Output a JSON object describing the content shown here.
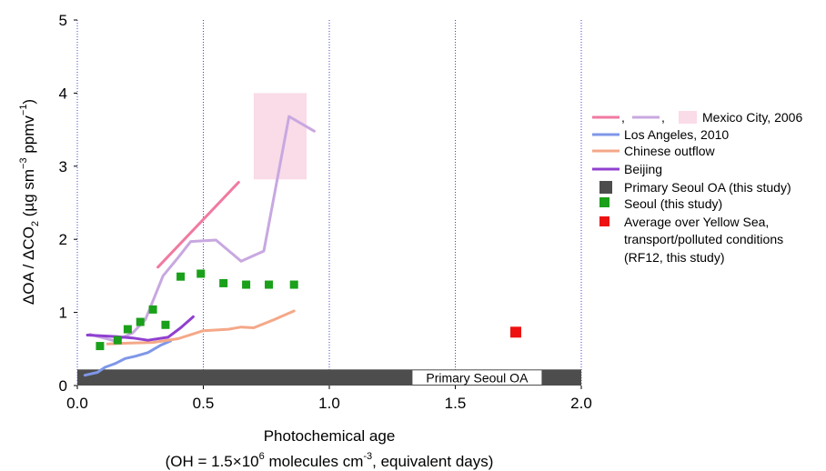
{
  "chart_data": {
    "type": "line",
    "xlim": [
      0,
      2.0
    ],
    "ylim": [
      0,
      5
    ],
    "x_ticks": [
      "0.0",
      "0.5",
      "1.0",
      "1.5",
      "2.0"
    ],
    "y_ticks": [
      "0",
      "1",
      "2",
      "3",
      "4",
      "5"
    ],
    "xlabel": "Photochemical age",
    "xlabel2_pre": "(OH = 1.5×10",
    "xlabel2_sup": "6",
    "xlabel2_mid": " molecules cm",
    "xlabel2_sup2": "-3",
    "xlabel2_post": ", equivalent days)",
    "ylabel_a": "ΔOA / ΔCO",
    "ylabel_sub": "2",
    "ylabel_b": " (µg sm",
    "ylabel_sup1": "−3",
    "ylabel_c": " ppmv",
    "ylabel_sup2": "−1",
    "ylabel_d": ")",
    "vertical_gridlines": [
      0.5,
      1.0,
      1.5,
      2.0
    ],
    "grid_color": "#4040d0",
    "band": {
      "label": "Primary Seoul OA",
      "y_range": [
        0,
        0.22
      ],
      "color": "#4d4d4d"
    },
    "mexico_box": {
      "x_range": [
        0.7,
        0.91
      ],
      "y_range": [
        2.82,
        4.0
      ],
      "color": "#fadbe8"
    },
    "series": [
      {
        "name": "Mexico City, 2006",
        "color": "#f07aa0",
        "points": [
          [
            0.32,
            1.62
          ],
          [
            0.64,
            2.78
          ]
        ]
      },
      {
        "color": "#c8a8e0",
        "points": [
          [
            0.05,
            0.7
          ],
          [
            0.15,
            0.61
          ],
          [
            0.22,
            0.72
          ],
          [
            0.27,
            0.9
          ],
          [
            0.34,
            1.5
          ],
          [
            0.4,
            1.75
          ],
          [
            0.45,
            1.97
          ],
          [
            0.55,
            1.99
          ],
          [
            0.65,
            1.7
          ],
          [
            0.74,
            1.84
          ],
          [
            0.84,
            3.68
          ],
          [
            0.94,
            3.48
          ]
        ]
      },
      {
        "name": "Los Angeles, 2010",
        "color": "#7f97e8",
        "points": [
          [
            0.03,
            0.14
          ],
          [
            0.08,
            0.18
          ],
          [
            0.11,
            0.25
          ],
          [
            0.15,
            0.3
          ],
          [
            0.19,
            0.37
          ],
          [
            0.23,
            0.4
          ],
          [
            0.28,
            0.45
          ],
          [
            0.33,
            0.55
          ],
          [
            0.37,
            0.61
          ]
        ]
      },
      {
        "name": "Chinese  outflow",
        "color": "#f4a888",
        "points": [
          [
            0.12,
            0.57
          ],
          [
            0.2,
            0.58
          ],
          [
            0.3,
            0.59
          ],
          [
            0.4,
            0.64
          ],
          [
            0.5,
            0.75
          ],
          [
            0.6,
            0.77
          ],
          [
            0.65,
            0.8
          ],
          [
            0.7,
            0.79
          ],
          [
            0.78,
            0.9
          ],
          [
            0.86,
            1.02
          ]
        ]
      },
      {
        "name": "Beijing",
        "color": "#9040d0",
        "points": [
          [
            0.04,
            0.69
          ],
          [
            0.15,
            0.67
          ],
          [
            0.22,
            0.65
          ],
          [
            0.28,
            0.62
          ],
          [
            0.36,
            0.66
          ],
          [
            0.41,
            0.79
          ],
          [
            0.46,
            0.94
          ]
        ]
      }
    ],
    "scatter": [
      {
        "name": "Seoul  (this study)",
        "color": "#1aa01a",
        "points": [
          [
            0.09,
            0.54
          ],
          [
            0.16,
            0.62
          ],
          [
            0.2,
            0.77
          ],
          [
            0.25,
            0.87
          ],
          [
            0.3,
            1.04
          ],
          [
            0.35,
            0.83
          ],
          [
            0.41,
            1.49
          ],
          [
            0.49,
            1.53
          ],
          [
            0.58,
            1.4
          ],
          [
            0.67,
            1.38
          ],
          [
            0.76,
            1.38
          ],
          [
            0.86,
            1.38
          ]
        ]
      },
      {
        "name": "Average over Yellow Sea, transport/polluted conditions (RF12, this study)",
        "color": "#ee1111",
        "points": [
          [
            1.74,
            0.73
          ]
        ]
      }
    ],
    "legend": {
      "placement": "right",
      "row1_sep1": ",",
      "row1_sep2": ",",
      "row1_label": "Mexico City, 2006",
      "la_label": "Los Angeles, 2010",
      "chinese_label": "Chinese  outflow",
      "beijing_label": "Beijing",
      "primary_label": "Primary Seoul OA (this study)",
      "seoul_label": "Seoul  (this study)",
      "yellow_label_1": "Average over  Yellow Sea,",
      "yellow_label_2": "transport/polluted conditions",
      "yellow_label_3": "(RF12, this study)"
    }
  }
}
